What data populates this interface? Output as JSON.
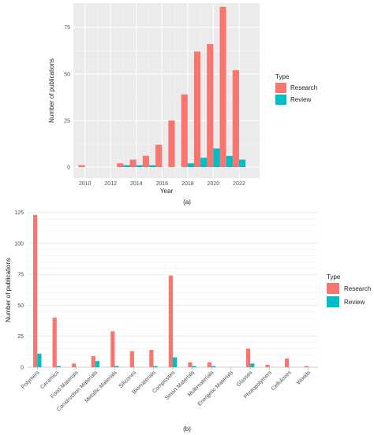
{
  "chart_data": [
    {
      "type": "bar",
      "caption": "(a)",
      "x": [
        2010,
        2011,
        2012,
        2013,
        2014,
        2015,
        2016,
        2017,
        2018,
        2019,
        2020,
        2021,
        2022
      ],
      "x_ticks": [
        "2010",
        "2012",
        "2014",
        "2016",
        "2018",
        "2020",
        "2022"
      ],
      "y_ticks": [
        "0",
        "25",
        "50",
        "75"
      ],
      "series": [
        {
          "name": "Research",
          "color": "#F8766D",
          "values": [
            1,
            0,
            0,
            2,
            4,
            6,
            12,
            25,
            39,
            62,
            66,
            86,
            52
          ]
        },
        {
          "name": "Review",
          "color": "#00BFC4",
          "values": [
            0,
            0,
            0,
            1,
            1,
            1,
            0,
            0,
            2,
            5,
            10,
            6,
            4
          ]
        }
      ],
      "xlabel": "Year",
      "ylabel": "Number of publications",
      "ylim": [
        0,
        88
      ],
      "legend": {
        "title": "Type",
        "position": "right"
      },
      "grid": true
    },
    {
      "type": "bar",
      "caption": "(b)",
      "categories": [
        "Polymers",
        "Ceramics",
        "Food Materials",
        "Construction Materials",
        "Metallic Materials",
        "Silicones",
        "Biomaterials",
        "Composites",
        "Smart Materials",
        "Multimaterials",
        "Energetic Materials",
        "Glasses",
        "Photopolymers",
        "Celluloses",
        "Woods"
      ],
      "y_ticks": [
        "0",
        "25",
        "50",
        "75",
        "100",
        "125"
      ],
      "series": [
        {
          "name": "Research",
          "color": "#F8766D",
          "values": [
            123,
            40,
            3,
            9,
            29,
            13,
            14,
            74,
            4,
            4,
            0,
            15,
            2,
            7,
            1
          ]
        },
        {
          "name": "Review",
          "color": "#00BFC4",
          "values": [
            11,
            1,
            0,
            5,
            1,
            0,
            1,
            8,
            1,
            1,
            0,
            3,
            0,
            0,
            0
          ]
        }
      ],
      "xlabel": "",
      "ylabel": "Number of publications",
      "ylim": [
        0,
        126
      ],
      "legend": {
        "title": "Type",
        "position": "right"
      },
      "grid": true
    }
  ]
}
